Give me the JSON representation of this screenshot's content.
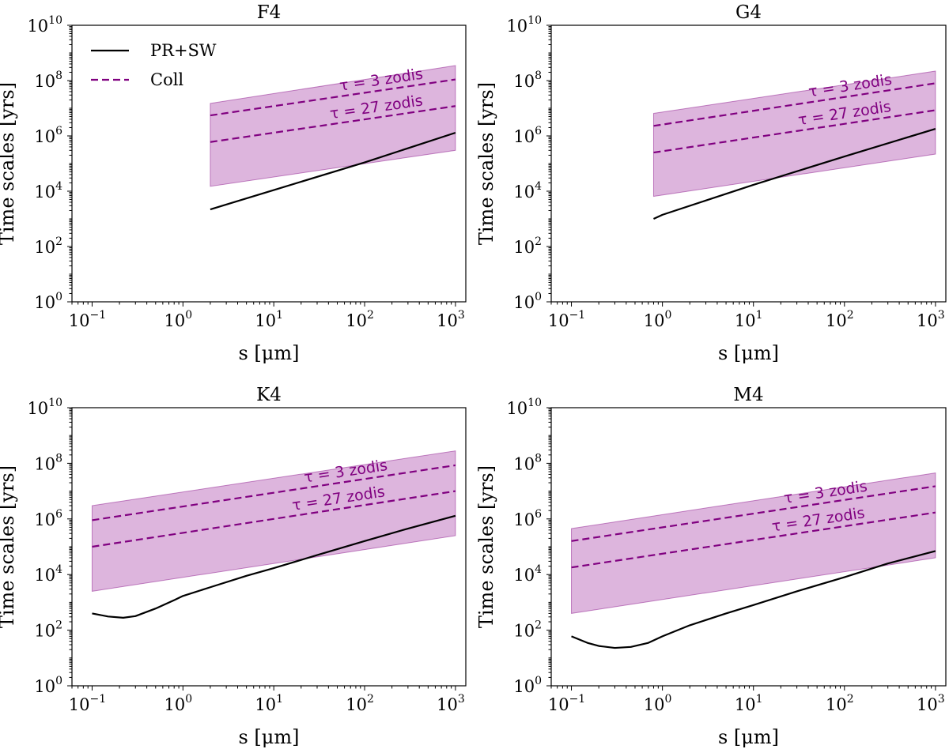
{
  "colors": {
    "coll": "#800080",
    "band_fill": "#c47fc4",
    "prsw": "#000000"
  },
  "chart_data": [
    {
      "type": "line",
      "title": "F4",
      "xlabel": "s [μm]",
      "ylabel": "Time scales [yrs]",
      "xscale": "log",
      "yscale": "log",
      "xlim": [
        0.06,
        1300
      ],
      "ylim": [
        1,
        10000000000
      ],
      "xtick_exponents": [
        -1,
        0,
        1,
        2,
        3
      ],
      "ytick_exponents": [
        0,
        2,
        4,
        6,
        8,
        10
      ],
      "legend": {
        "location": "top-left",
        "entries": [
          "PR+SW",
          "Coll"
        ]
      },
      "series": [
        {
          "name": "PR+SW",
          "style": "solid",
          "x": [
            2,
            10,
            100,
            1000
          ],
          "y": [
            2200,
            11000,
            110000,
            1300000
          ]
        },
        {
          "name": "Coll",
          "label": "τ = 3 zodis",
          "style": "dashed",
          "x": [
            2,
            1000
          ],
          "y": [
            5500000,
            110000000
          ]
        },
        {
          "name": "Coll",
          "label": "τ = 27 zodis",
          "style": "dashed",
          "x": [
            2,
            1000
          ],
          "y": [
            600000,
            12000000
          ]
        },
        {
          "name": "Coll range",
          "style": "band",
          "x": [
            2,
            1000
          ],
          "y_upper": [
            15000000,
            350000000
          ],
          "y_lower": [
            15000,
            300000
          ]
        }
      ],
      "annotations": [
        "τ = 3 zodis",
        "τ = 27 zodis"
      ]
    },
    {
      "type": "line",
      "title": "G4",
      "xlabel": "s [μm]",
      "ylabel": "Time scales [yrs]",
      "xscale": "log",
      "yscale": "log",
      "xlim": [
        0.06,
        1300
      ],
      "ylim": [
        1,
        10000000000
      ],
      "xtick_exponents": [
        -1,
        0,
        1,
        2,
        3
      ],
      "ytick_exponents": [
        0,
        2,
        4,
        6,
        8,
        10
      ],
      "series": [
        {
          "name": "PR+SW",
          "style": "solid",
          "x": [
            0.8,
            1,
            10,
            100,
            1000
          ],
          "y": [
            1000,
            1400,
            17000,
            180000,
            1800000
          ]
        },
        {
          "name": "Coll",
          "label": "τ = 3 zodis",
          "style": "dashed",
          "x": [
            0.8,
            1000
          ],
          "y": [
            2300000,
            80000000
          ]
        },
        {
          "name": "Coll",
          "label": "τ = 27 zodis",
          "style": "dashed",
          "x": [
            0.8,
            1000
          ],
          "y": [
            250000,
            8500000
          ]
        },
        {
          "name": "Coll range",
          "style": "band",
          "x": [
            0.8,
            1000
          ],
          "y_upper": [
            6500000,
            220000000
          ],
          "y_lower": [
            6500,
            220000
          ]
        }
      ],
      "annotations": [
        "τ = 3 zodis",
        "τ = 27 zodis"
      ]
    },
    {
      "type": "line",
      "title": "K4",
      "xlabel": "s [μm]",
      "ylabel": "Time scales [yrs]",
      "xscale": "log",
      "yscale": "log",
      "xlim": [
        0.06,
        1300
      ],
      "ylim": [
        1,
        10000000000
      ],
      "xtick_exponents": [
        -1,
        0,
        1,
        2,
        3
      ],
      "ytick_exponents": [
        0,
        2,
        4,
        6,
        8,
        10
      ],
      "series": [
        {
          "name": "PR+SW",
          "style": "solid",
          "x": [
            0.1,
            0.15,
            0.22,
            0.3,
            0.5,
            0.8,
            1,
            2,
            5,
            10,
            30,
            100,
            300,
            1000
          ],
          "y": [
            400,
            310,
            280,
            320,
            600,
            1200,
            1700,
            3500,
            9000,
            17000,
            50000,
            160000,
            450000,
            1300000
          ]
        },
        {
          "name": "Coll",
          "label": "τ = 3 zodis",
          "style": "dashed",
          "x": [
            0.1,
            1000
          ],
          "y": [
            900000,
            85000000
          ]
        },
        {
          "name": "Coll",
          "label": "τ = 27 zodis",
          "style": "dashed",
          "x": [
            0.1,
            1000
          ],
          "y": [
            100000,
            10000000
          ]
        },
        {
          "name": "Coll range",
          "style": "band",
          "x": [
            0.1,
            1000
          ],
          "y_upper": [
            3000000,
            280000000
          ],
          "y_lower": [
            2500,
            250000
          ]
        }
      ],
      "annotations": [
        "τ = 3 zodis",
        "τ = 27 zodis"
      ]
    },
    {
      "type": "line",
      "title": "M4",
      "xlabel": "s [μm]",
      "ylabel": "Time scales [yrs]",
      "xscale": "log",
      "yscale": "log",
      "xlim": [
        0.06,
        1300
      ],
      "ylim": [
        1,
        10000000000
      ],
      "xtick_exponents": [
        -1,
        0,
        1,
        2,
        3
      ],
      "ytick_exponents": [
        0,
        2,
        4,
        6,
        8,
        10
      ],
      "series": [
        {
          "name": "PR+SW",
          "style": "solid",
          "x": [
            0.1,
            0.15,
            0.2,
            0.3,
            0.45,
            0.7,
            1,
            2,
            5,
            10,
            30,
            100,
            300,
            1000
          ],
          "y": [
            60,
            35,
            27,
            23,
            25,
            35,
            60,
            150,
            400,
            800,
            2500,
            8000,
            25000,
            70000
          ]
        },
        {
          "name": "Coll",
          "label": "τ = 3 zodis",
          "style": "dashed",
          "x": [
            0.1,
            1000
          ],
          "y": [
            160000,
            15000000
          ]
        },
        {
          "name": "Coll",
          "label": "τ = 27 zodis",
          "style": "dashed",
          "x": [
            0.1,
            1000
          ],
          "y": [
            18000,
            1700000
          ]
        },
        {
          "name": "Coll range",
          "style": "band",
          "x": [
            0.1,
            1000
          ],
          "y_upper": [
            450000,
            45000000
          ],
          "y_lower": [
            400,
            40000
          ]
        }
      ],
      "annotations": [
        "τ = 3 zodis",
        "τ = 27 zodis"
      ]
    }
  ]
}
